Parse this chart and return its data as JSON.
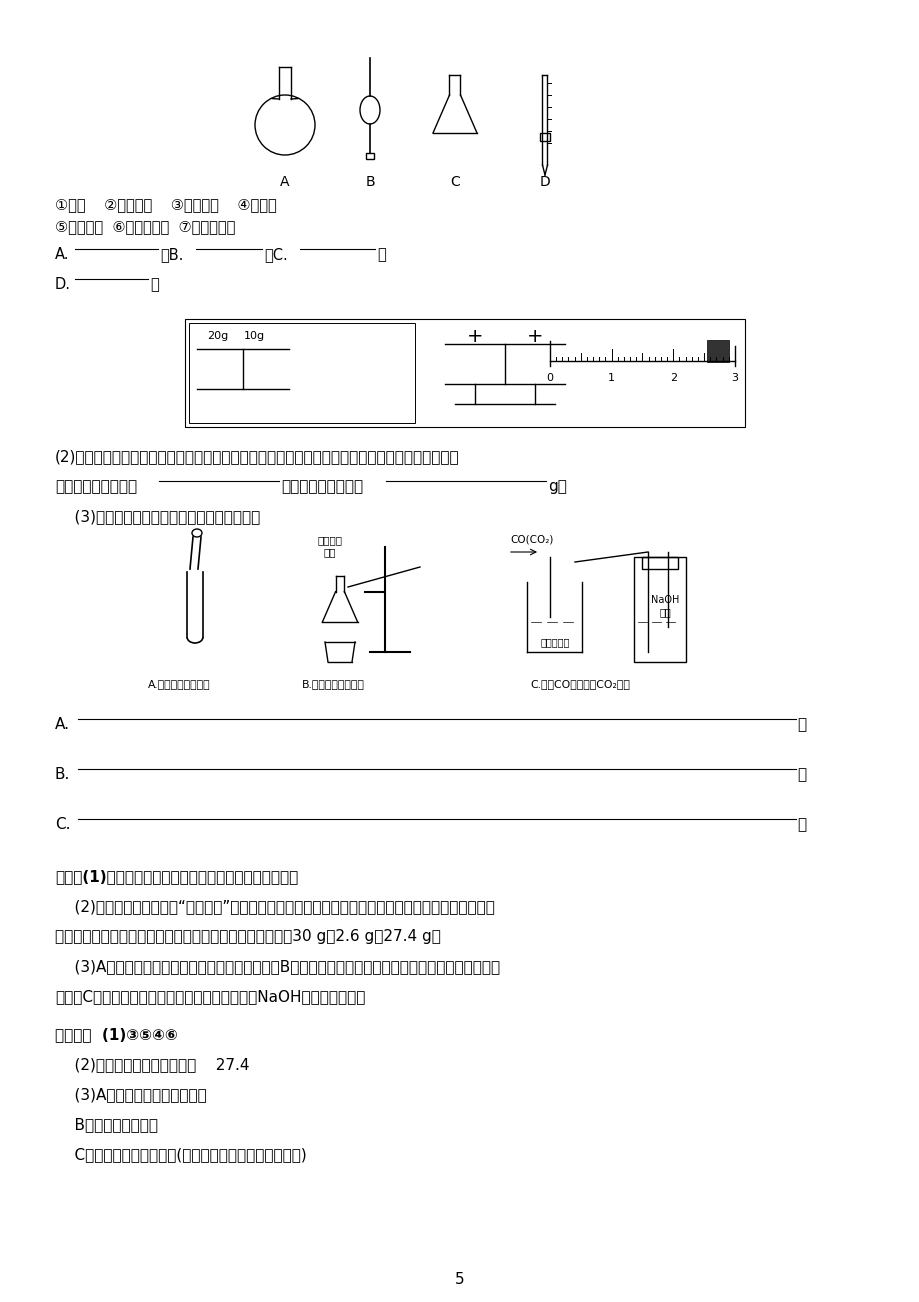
{
  "bg_color": "#ffffff",
  "text_color": "#000000",
  "page_number": "5",
  "instruments_line1": "①烧杯    ②普通漏斗    ③圆底烧瓶    ④锥形瓶",
  "instruments_line2": "⑤分液漏斗  ⑥酸式滴定管  ⑦筹式滴定管",
  "q2_text": "(2)某同学用托盘天平称量烧杯的质量，天平平衡后的状态如下图所示。从图中可以看出，该同学在",
  "q2_text2": "操作时的一个错误是",
  "q2_text3": "，烧杯的实际质量为",
  "q2_text4": "g。",
  "q3_text": "    (3)指出下面三个实验中各存在的一个错误：",
  "img_caption_a": "A.向试管中滴加液体",
  "img_caption_b": "B.碳酸氢钓受热分解",
  "img_caption_c": "C.除去CO气体中的CO₂气体",
  "analysis_header": "解析：(1)根据常见他器的形状可判断出四种他器的名称。",
  "analysis_2": "    (2)根据天平称量的要求“左物右码”，该同学将物品与砂码位置放反了，但天平只要平衡，就仍满足：",
  "analysis_2b": "左盘质量＝右盘质量＋游码质量，因此，烧杯的实际质量为30 g－2.6 g＝27.4 g。",
  "analysis_3": "    (3)A中滴加液体时，胶头滴管不能伸入试管内；B项试管口应稍向下倾斜，否则会引起水倒流，使试管",
  "analysis_3b": "炸裂；C项导气管应换为长进短出，否则气体会把NaOH溶液排出瓶外。",
  "answer_header": "【答案】  (1)③⑤④⑥",
  "answer_2": "    (2)砂码和物品的位置放反了    27.4",
  "answer_3a": "    (3)A：胶头滴管伸入试管内了",
  "answer_3b": "    B：试管口向上倾斜",
  "answer_3c": "    C：进气管和出气管反了(或混合气体从短管进入洗气瓶)"
}
